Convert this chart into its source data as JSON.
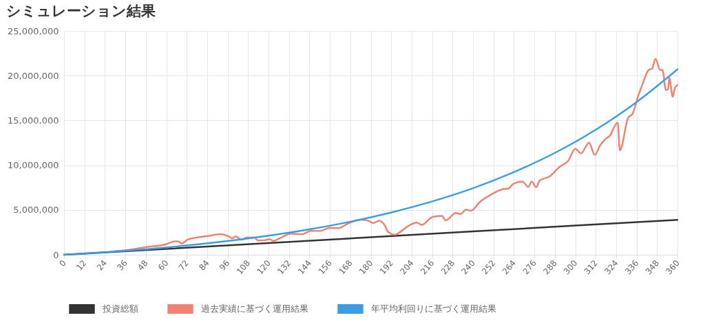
{
  "chart_data": {
    "type": "line",
    "title": "シミュレーション結果",
    "xlim": [
      0,
      360
    ],
    "xticks": [
      0,
      12,
      24,
      36,
      48,
      60,
      72,
      84,
      96,
      108,
      120,
      132,
      144,
      156,
      168,
      180,
      192,
      204,
      216,
      228,
      240,
      252,
      264,
      276,
      288,
      300,
      312,
      324,
      336,
      348,
      360
    ],
    "ylim": [
      0,
      25000000
    ],
    "yticks": [
      0,
      {
        "value": 5000000,
        "label": "5,000,000"
      },
      {
        "value": 10000000,
        "label": "10,000,000"
      },
      {
        "value": 15000000,
        "label": "15,000,000"
      },
      {
        "value": 20000000,
        "label": "20,000,000"
      },
      {
        "value": 25000000,
        "label": "25,000,000"
      }
    ],
    "grid": true,
    "legend": "bottom",
    "marker": "none",
    "line_style": "solid",
    "series": [
      {
        "name": "投資総額",
        "color": "#333333",
        "x": [
          0,
          120,
          240,
          360
        ],
        "values": [
          0,
          1300000,
          2600000,
          3900000
        ]
      },
      {
        "name": "過去実績に基づく運用結果",
        "color": "#ef8270",
        "x": [
          30,
          36,
          48,
          60,
          63.5,
          67,
          69,
          72.4,
          77.8,
          84.6,
          91.3,
          96.7,
          98.6,
          100.8,
          104,
          107.3,
          111.4,
          114,
          117.4,
          120.8,
          122.8,
          127.5,
          133,
          139.6,
          145,
          150.4,
          155.8,
          161.2,
          166,
          168,
          174.7,
          178.7,
          181.5,
          184.8,
          188.2,
          190.2,
          194.3,
          197.7,
          201.7,
          207.1,
          209.8,
          216.5,
          221.9,
          223.9,
          230,
          232.7,
          236,
          238.7,
          244.1,
          250.1,
          256.9,
          260.9,
          263.6,
          269,
          272.4,
          274.4,
          277.1,
          279.1,
          285.2,
          290.6,
          296,
          300,
          303.4,
          308.1,
          311.4,
          314.8,
          317.5,
          320.2,
          324.9,
          326.2,
          331,
          333.7,
          337,
          339.7,
          343.1,
          345.1,
          347.1,
          349.8,
          351.2,
          353.2,
          354.5,
          355.2,
          357.2,
          358.5,
          360
        ],
        "values": [
          400000,
          500000,
          850000,
          1170000,
          1420000,
          1500000,
          1250000,
          1670000,
          1920000,
          2090000,
          2300000,
          2050000,
          1840000,
          2050000,
          1670000,
          1920000,
          1920000,
          1600000,
          1620000,
          1720000,
          1550000,
          1920000,
          2350000,
          2300000,
          2670000,
          2670000,
          3000000,
          2980000,
          3420000,
          3590000,
          3920000,
          3790000,
          3540000,
          3790000,
          3290000,
          2540000,
          2240000,
          2600000,
          3170000,
          3590000,
          3340000,
          4240000,
          4340000,
          3840000,
          4660000,
          4540000,
          5040000,
          4910000,
          5910000,
          6660000,
          7280000,
          7400000,
          7910000,
          8160000,
          7580000,
          8160000,
          7530000,
          8280000,
          8780000,
          9780000,
          10530000,
          11830000,
          11320000,
          12520000,
          11150000,
          12270000,
          12900000,
          13270000,
          14770000,
          11650000,
          15270000,
          15770000,
          17760000,
          19140000,
          20640000,
          20760000,
          21880000,
          20640000,
          20640000,
          18390000,
          18500000,
          19760000,
          17640000,
          18640000,
          18960000
        ]
      },
      {
        "name": "年平均利回りに基づく運用結果",
        "color": "#3a9ee4",
        "x": [
          0,
          24,
          48,
          72,
          96,
          120,
          144,
          168,
          192,
          216,
          240,
          264,
          288,
          312,
          336,
          360
        ],
        "values": [
          0,
          280000,
          620000,
          1030000,
          1530000,
          2120000,
          2830000,
          3690000,
          4720000,
          5950000,
          7430000,
          9230000,
          11370000,
          13960000,
          17050000,
          20700000
        ]
      }
    ]
  }
}
